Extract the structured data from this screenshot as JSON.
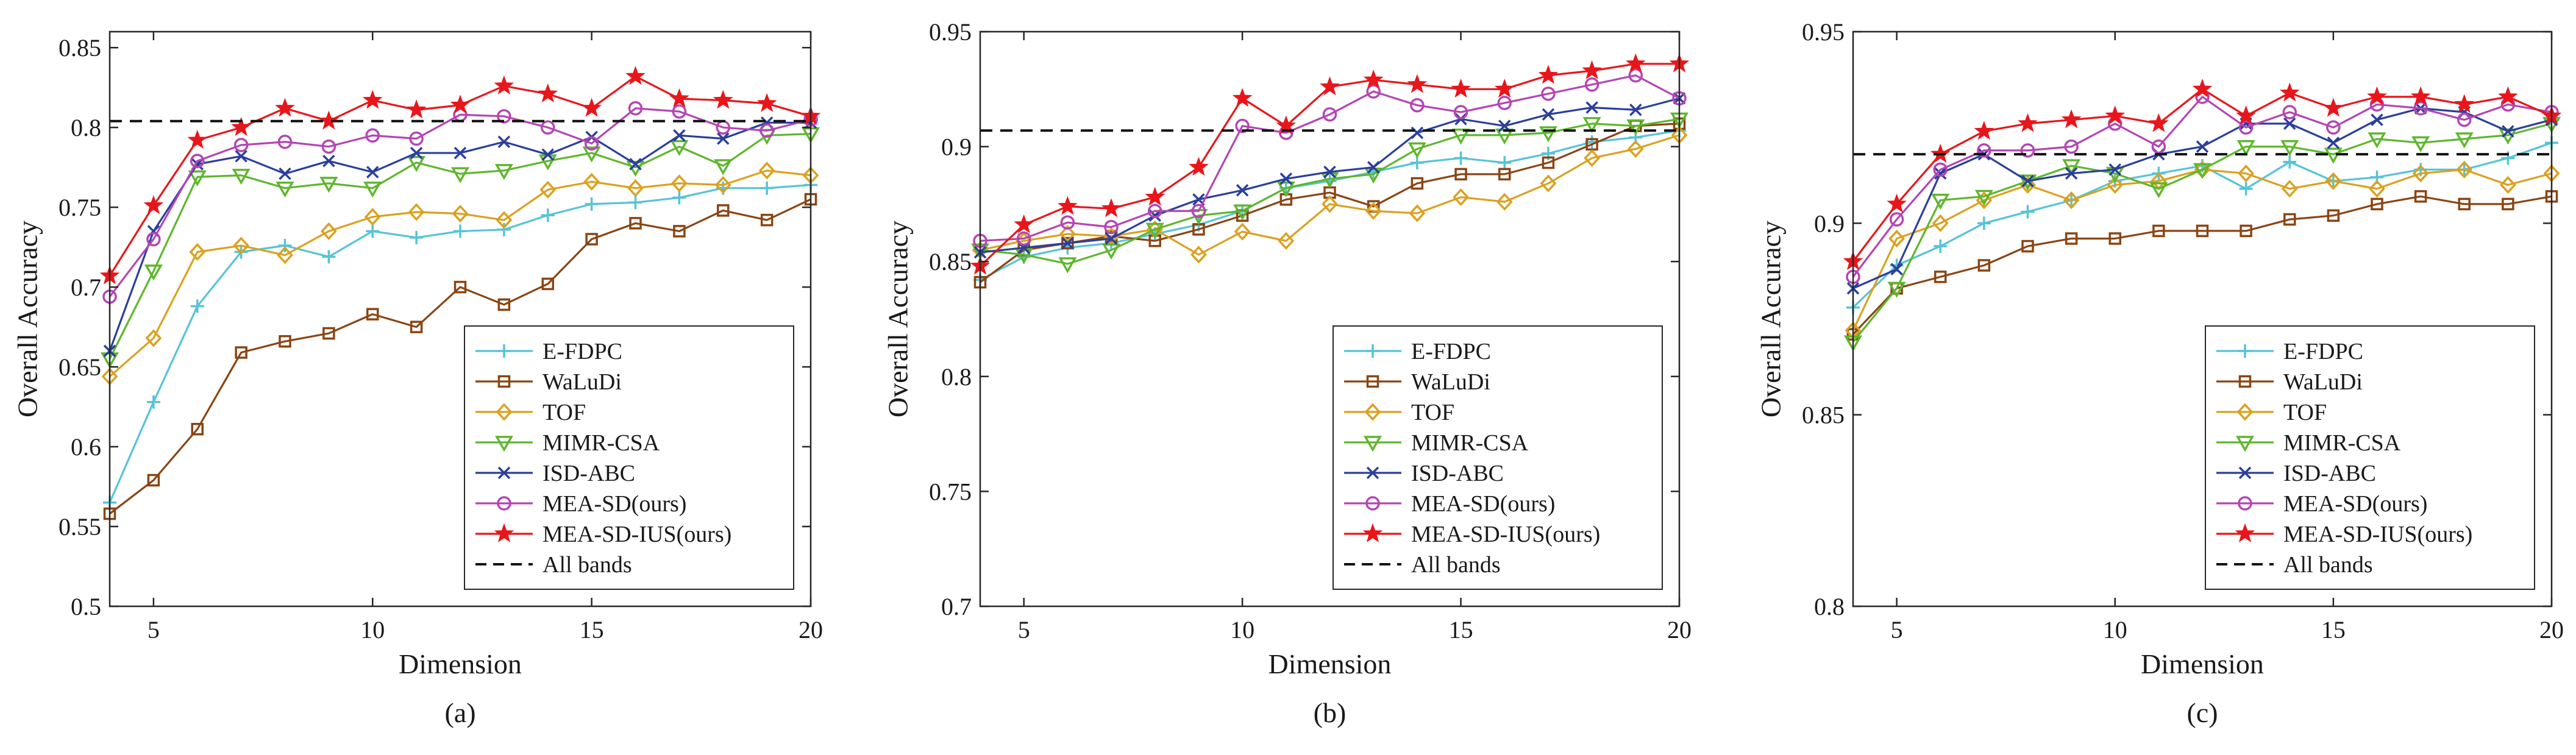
{
  "legend_entries": [
    "E-FDPC",
    "WaLuDi",
    "TOF",
    "MIMR-CSA",
    "ISD-ABC",
    "MEA-SD(ours)",
    "MEA-SD-IUS(ours)",
    "All bands"
  ],
  "series_colors": [
    "#56c4d6",
    "#8b4513",
    "#dba11f",
    "#5fb62e",
    "#2b3f9c",
    "#b445b4",
    "#e8161b",
    "#111111"
  ],
  "series_markers": [
    "plus",
    "square",
    "diamond",
    "triangle-down",
    "x",
    "circle",
    "star",
    "none"
  ],
  "chart_data": [
    {
      "type": "line",
      "caption": "(a)",
      "xlabel": "Dimension",
      "ylabel": "Overall Accuracy",
      "xlim": [
        4,
        20
      ],
      "ylim": [
        0.5,
        0.86
      ],
      "xticks": [
        5,
        10,
        15,
        20
      ],
      "xtick_labels": [
        "5",
        "10",
        "15",
        "20"
      ],
      "yticks": [
        0.5,
        0.55,
        0.6,
        0.65,
        0.7,
        0.75,
        0.8,
        0.85
      ],
      "ytick_labels": [
        "0.5",
        "0.55",
        "0.6",
        "0.65",
        "0.7",
        "0.75",
        "0.8",
        "0.85"
      ],
      "legend_position": "bottom-right",
      "grid": false,
      "x": [
        4,
        5,
        6,
        7,
        8,
        9,
        10,
        11,
        12,
        13,
        14,
        15,
        16,
        17,
        18,
        19,
        20
      ],
      "series": [
        {
          "name": "E-FDPC",
          "values": [
            0.565,
            0.628,
            0.688,
            0.722,
            0.726,
            0.719,
            0.735,
            0.731,
            0.735,
            0.736,
            0.745,
            0.752,
            0.753,
            0.756,
            0.762,
            0.762,
            0.764
          ]
        },
        {
          "name": "WaLuDi",
          "values": [
            0.558,
            0.579,
            0.611,
            0.659,
            0.666,
            0.671,
            0.683,
            0.675,
            0.7,
            0.689,
            0.702,
            0.73,
            0.74,
            0.735,
            0.748,
            0.742,
            0.755
          ]
        },
        {
          "name": "TOF",
          "values": [
            0.644,
            0.668,
            0.722,
            0.726,
            0.72,
            0.735,
            0.744,
            0.747,
            0.746,
            0.742,
            0.761,
            0.766,
            0.762,
            0.765,
            0.764,
            0.773,
            0.77
          ]
        },
        {
          "name": "MIMR-CSA",
          "values": [
            0.655,
            0.71,
            0.769,
            0.77,
            0.762,
            0.765,
            0.762,
            0.778,
            0.771,
            0.773,
            0.779,
            0.784,
            0.775,
            0.788,
            0.776,
            0.795,
            0.796
          ]
        },
        {
          "name": "ISD-ABC",
          "values": [
            0.66,
            0.735,
            0.777,
            0.782,
            0.771,
            0.779,
            0.772,
            0.784,
            0.784,
            0.791,
            0.783,
            0.794,
            0.777,
            0.795,
            0.793,
            0.803,
            0.803
          ]
        },
        {
          "name": "MEA-SD(ours)",
          "values": [
            0.694,
            0.73,
            0.779,
            0.789,
            0.791,
            0.788,
            0.795,
            0.793,
            0.808,
            0.807,
            0.8,
            0.79,
            0.812,
            0.81,
            0.8,
            0.798,
            0.805
          ]
        },
        {
          "name": "MEA-SD-IUS(ours)",
          "values": [
            0.707,
            0.751,
            0.792,
            0.8,
            0.812,
            0.804,
            0.817,
            0.811,
            0.814,
            0.826,
            0.821,
            0.812,
            0.832,
            0.818,
            0.817,
            0.815,
            0.807
          ]
        },
        {
          "name": "All bands",
          "values": [
            0.804,
            0.804,
            0.804,
            0.804,
            0.804,
            0.804,
            0.804,
            0.804,
            0.804,
            0.804,
            0.804,
            0.804,
            0.804,
            0.804,
            0.804,
            0.804,
            0.804
          ]
        }
      ]
    },
    {
      "type": "line",
      "caption": "(b)",
      "xlabel": "Dimension",
      "ylabel": "Overall Accuracy",
      "xlim": [
        4,
        20
      ],
      "ylim": [
        0.7,
        0.95
      ],
      "xticks": [
        5,
        10,
        15,
        20
      ],
      "xtick_labels": [
        "5",
        "10",
        "15",
        "20"
      ],
      "yticks": [
        0.7,
        0.75,
        0.8,
        0.85,
        0.9,
        0.95
      ],
      "ytick_labels": [
        "0.7",
        "0.75",
        "0.8",
        "0.85",
        "0.9",
        "0.95"
      ],
      "legend_position": "bottom-right",
      "grid": false,
      "x": [
        4,
        5,
        6,
        7,
        8,
        9,
        10,
        11,
        12,
        13,
        14,
        15,
        16,
        17,
        18,
        19,
        20
      ],
      "series": [
        {
          "name": "E-FDPC",
          "values": [
            0.842,
            0.852,
            0.856,
            0.858,
            0.862,
            0.866,
            0.872,
            0.882,
            0.885,
            0.889,
            0.893,
            0.895,
            0.893,
            0.897,
            0.902,
            0.904,
            0.907
          ]
        },
        {
          "name": "WaLuDi",
          "values": [
            0.841,
            0.855,
            0.858,
            0.861,
            0.859,
            0.864,
            0.87,
            0.877,
            0.88,
            0.874,
            0.884,
            0.888,
            0.888,
            0.893,
            0.901,
            0.909,
            0.91
          ]
        },
        {
          "name": "TOF",
          "values": [
            0.855,
            0.859,
            0.862,
            0.861,
            0.864,
            0.853,
            0.863,
            0.859,
            0.875,
            0.872,
            0.871,
            0.878,
            0.876,
            0.884,
            0.895,
            0.899,
            0.905
          ]
        },
        {
          "name": "MIMR-CSA",
          "values": [
            0.855,
            0.853,
            0.849,
            0.855,
            0.864,
            0.87,
            0.872,
            0.882,
            0.886,
            0.888,
            0.899,
            0.905,
            0.905,
            0.906,
            0.91,
            0.909,
            0.912
          ]
        },
        {
          "name": "ISD-ABC",
          "values": [
            0.854,
            0.856,
            0.858,
            0.86,
            0.87,
            0.877,
            0.881,
            0.886,
            0.889,
            0.891,
            0.906,
            0.912,
            0.909,
            0.914,
            0.917,
            0.916,
            0.921
          ]
        },
        {
          "name": "MEA-SD(ours)",
          "values": [
            0.859,
            0.86,
            0.867,
            0.865,
            0.872,
            0.872,
            0.909,
            0.906,
            0.914,
            0.924,
            0.918,
            0.915,
            0.919,
            0.923,
            0.927,
            0.931,
            0.921
          ]
        },
        {
          "name": "MEA-SD-IUS(ours)",
          "values": [
            0.848,
            0.866,
            0.874,
            0.873,
            0.878,
            0.891,
            0.921,
            0.909,
            0.926,
            0.929,
            0.927,
            0.925,
            0.925,
            0.931,
            0.933,
            0.936,
            0.936
          ]
        },
        {
          "name": "All bands",
          "values": [
            0.907,
            0.907,
            0.907,
            0.907,
            0.907,
            0.907,
            0.907,
            0.907,
            0.907,
            0.907,
            0.907,
            0.907,
            0.907,
            0.907,
            0.907,
            0.907,
            0.907
          ]
        }
      ]
    },
    {
      "type": "line",
      "caption": "(c)",
      "xlabel": "Dimension",
      "ylabel": "Overall Accuracy",
      "xlim": [
        4,
        20
      ],
      "ylim": [
        0.8,
        0.95
      ],
      "xticks": [
        5,
        10,
        15,
        20
      ],
      "xtick_labels": [
        "5",
        "10",
        "15",
        "20"
      ],
      "yticks": [
        0.8,
        0.85,
        0.9,
        0.95
      ],
      "ytick_labels": [
        "0.8",
        "0.85",
        "0.9",
        "0.95"
      ],
      "legend_position": "bottom-right",
      "grid": false,
      "x": [
        4,
        5,
        6,
        7,
        8,
        9,
        10,
        11,
        12,
        13,
        14,
        15,
        16,
        17,
        18,
        19,
        20
      ],
      "series": [
        {
          "name": "E-FDPC",
          "values": [
            0.878,
            0.889,
            0.894,
            0.9,
            0.903,
            0.906,
            0.911,
            0.913,
            0.915,
            0.909,
            0.916,
            0.911,
            0.912,
            0.914,
            0.914,
            0.917,
            0.921
          ]
        },
        {
          "name": "WaLuDi",
          "values": [
            0.871,
            0.883,
            0.886,
            0.889,
            0.894,
            0.896,
            0.896,
            0.898,
            0.898,
            0.898,
            0.901,
            0.902,
            0.905,
            0.907,
            0.905,
            0.905,
            0.907
          ]
        },
        {
          "name": "TOF",
          "values": [
            0.872,
            0.896,
            0.9,
            0.906,
            0.91,
            0.906,
            0.91,
            0.911,
            0.914,
            0.913,
            0.909,
            0.911,
            0.909,
            0.913,
            0.914,
            0.91,
            0.913
          ]
        },
        {
          "name": "MIMR-CSA",
          "values": [
            0.869,
            0.883,
            0.906,
            0.907,
            0.911,
            0.915,
            0.913,
            0.909,
            0.914,
            0.92,
            0.92,
            0.918,
            0.922,
            0.921,
            0.922,
            0.923,
            0.926
          ]
        },
        {
          "name": "ISD-ABC",
          "values": [
            0.883,
            0.888,
            0.913,
            0.918,
            0.911,
            0.913,
            0.914,
            0.918,
            0.92,
            0.926,
            0.926,
            0.921,
            0.927,
            0.93,
            0.929,
            0.924,
            0.927
          ]
        },
        {
          "name": "MEA-SD(ours)",
          "values": [
            0.886,
            0.901,
            0.914,
            0.919,
            0.919,
            0.92,
            0.926,
            0.92,
            0.933,
            0.925,
            0.929,
            0.925,
            0.931,
            0.93,
            0.927,
            0.931,
            0.929
          ]
        },
        {
          "name": "MEA-SD-IUS(ours)",
          "values": [
            0.89,
            0.905,
            0.918,
            0.924,
            0.926,
            0.927,
            0.928,
            0.926,
            0.935,
            0.928,
            0.934,
            0.93,
            0.933,
            0.933,
            0.931,
            0.933,
            0.928
          ]
        },
        {
          "name": "All bands",
          "values": [
            0.918,
            0.918,
            0.918,
            0.918,
            0.918,
            0.918,
            0.918,
            0.918,
            0.918,
            0.918,
            0.918,
            0.918,
            0.918,
            0.918,
            0.918,
            0.918,
            0.918
          ]
        }
      ]
    }
  ]
}
